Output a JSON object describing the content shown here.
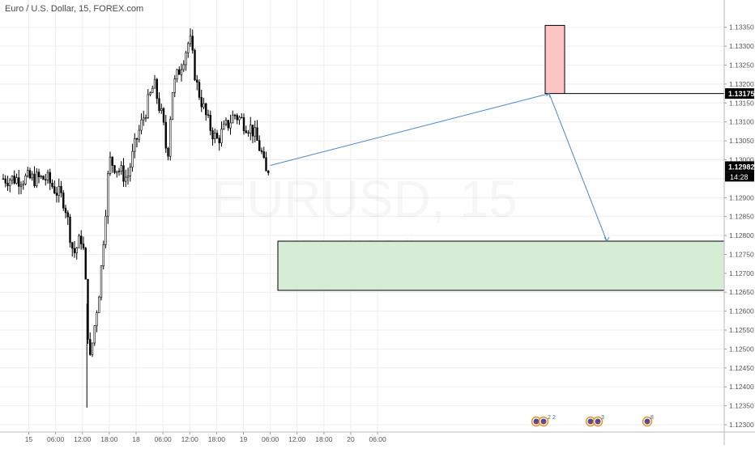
{
  "header": {
    "title": "Euro / U.S. Dollar, 15, FOREX.com"
  },
  "watermark": {
    "symbol": "EURUSD, 15",
    "name": "Euro / U.S. Dollar"
  },
  "price_axis": {
    "ticks": [
      "1.13350",
      "1.13300",
      "1.13250",
      "1.13200",
      "1.13150",
      "1.13100",
      "1.13050",
      "1.13000",
      "1.12950",
      "1.12900",
      "1.12850",
      "1.12800",
      "1.12750",
      "1.12700",
      "1.12650",
      "1.12600",
      "1.12550",
      "1.12500",
      "1.12450",
      "1.12400",
      "1.12350",
      "1.12300"
    ]
  },
  "time_axis": {
    "ticks": [
      "15",
      "06:00",
      "12:00",
      "18:00",
      "18",
      "06:00",
      "12:00",
      "18:00",
      "19",
      "06:00",
      "12:00",
      "18:00",
      "20",
      "06:00"
    ]
  },
  "price_tags": {
    "target_level": {
      "label": "1.13175",
      "color": "#000000"
    },
    "last_price": {
      "label": "1.12982",
      "color": "#000000"
    },
    "countdown": {
      "label": "14:28",
      "color": "#000000"
    }
  },
  "colors": {
    "candle": "#000000",
    "sell_zone_fill": "#ffc4c4",
    "buy_zone_fill": "#d7ecd4",
    "projection": "#4a86c8",
    "grid": "#eeeeee"
  },
  "events": [
    {
      "id": "group-1",
      "count": "2",
      "extra": "2"
    },
    {
      "id": "group-2",
      "count": "3"
    },
    {
      "id": "group-3",
      "count": "8"
    }
  ],
  "chart_data": {
    "type": "candlestick",
    "title": "Euro / U.S. Dollar, 15, FOREX.com",
    "xlabel": "",
    "ylabel": "",
    "ylim": [
      1.12285,
      1.13405
    ],
    "grid": true,
    "x_domain": [
      "15",
      "06:00"
    ],
    "series": [
      {
        "name": "",
        "keypoints_x_time": [
          "15 04:00",
          "15 08:00",
          "15 10:00",
          "15 12:00",
          "15 13:00",
          "15 13:30",
          "15 16:00",
          "15 18:00",
          "15 22:00",
          "18 00:00",
          "18 04:00",
          "18 06:00",
          "18 07:00",
          "18 08:00",
          "18 10:00",
          "18 12:00",
          "18 13:30",
          "18 16:00",
          "18 18:00",
          "18 22:00",
          "19 02:00",
          "19 04:00",
          "19 05:00",
          "19 06:00"
        ],
        "keypoints_close": [
          1.1295,
          1.1289,
          1.1275,
          1.128,
          1.1262,
          1.1245,
          1.1268,
          1.13,
          1.1295,
          1.1305,
          1.132,
          1.131,
          1.13,
          1.1318,
          1.1325,
          1.1332,
          1.132,
          1.131,
          1.1305,
          1.1312,
          1.1308,
          1.1302,
          1.1296,
          1.1299
        ]
      }
    ],
    "annotations": {
      "sell_zone": {
        "from_x": "19 23:00",
        "to_x": "20 00:00",
        "top": 1.13355,
        "bottom": 1.13175
      },
      "target_line": {
        "value": 1.13175
      },
      "buy_zone": {
        "from_x": "18 03:00",
        "to_x": "20 06:00",
        "top": 1.12785,
        "bottom": 1.12655
      },
      "projection_path": [
        {
          "x": "19 06:00",
          "y": 1.12985
        },
        {
          "x": "19 09:00",
          "y": 1.13175
        },
        {
          "x": "19 18:00",
          "y": 1.12785
        }
      ]
    },
    "last_price": 1.12982
  }
}
